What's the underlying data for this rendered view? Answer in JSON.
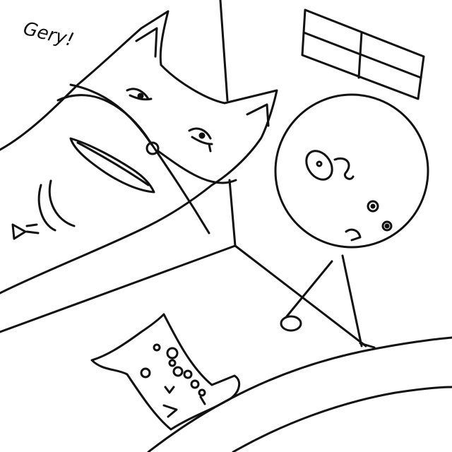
{
  "drawing": {
    "caption": "Gery!",
    "ink_color": "#111111",
    "paper_color": "#ffffff"
  }
}
